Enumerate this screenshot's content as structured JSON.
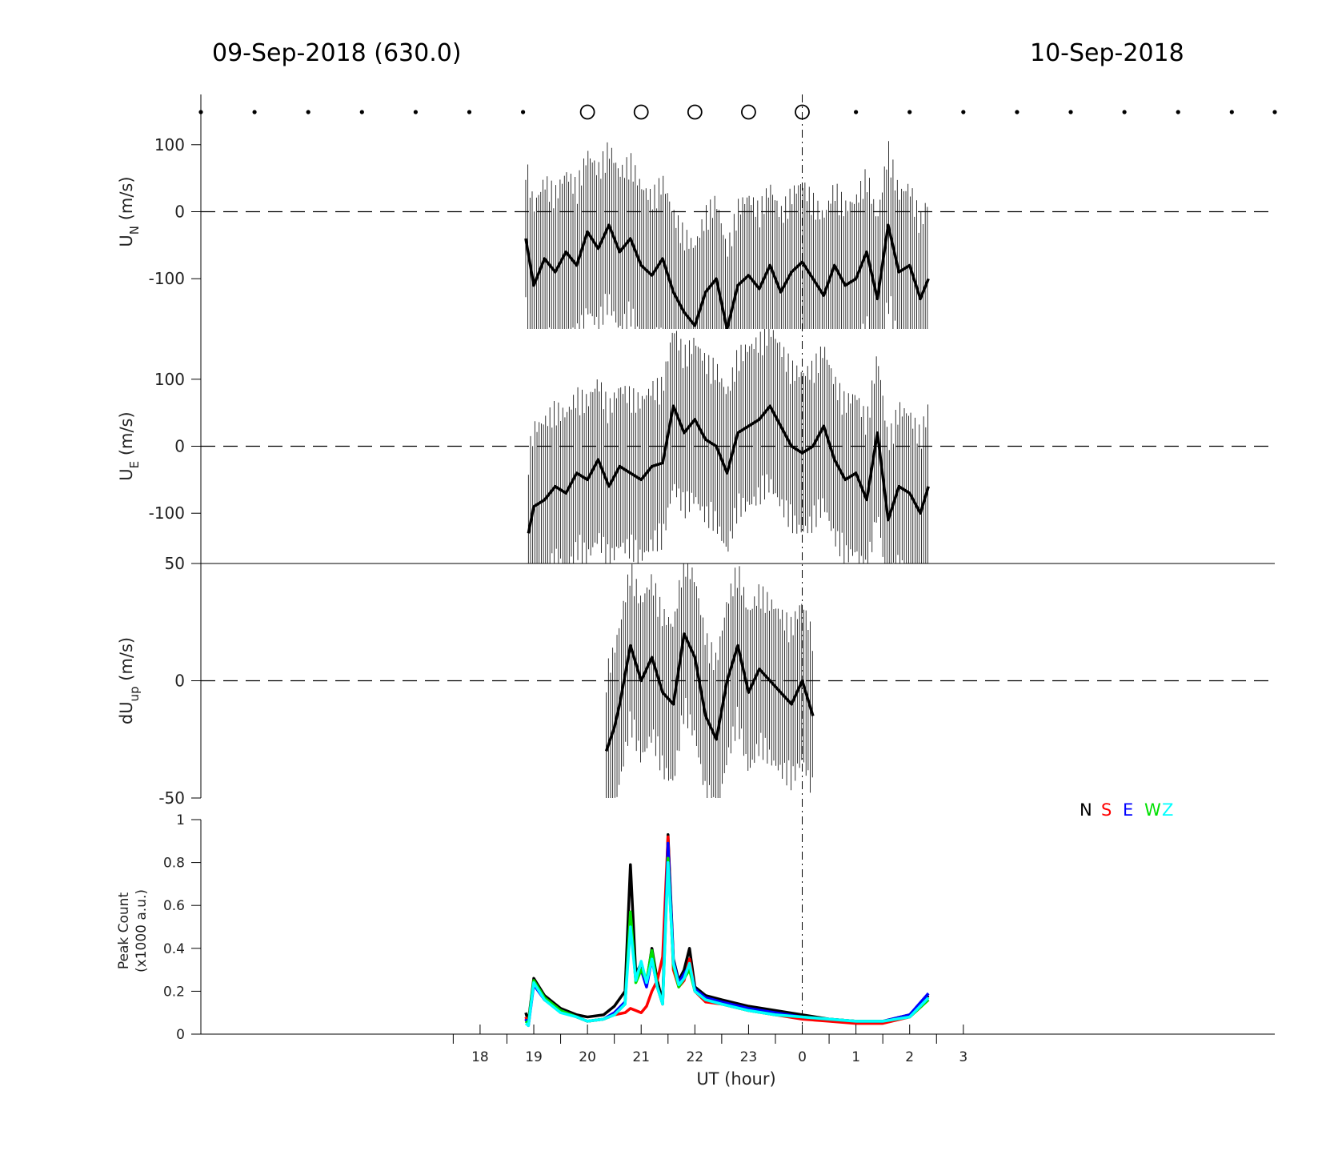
{
  "title_left": "09-Sep-2018 (630.0)",
  "title_right": "10-Sep-2018",
  "x_axis": {
    "label": "UT (hour)",
    "tick_labels": [
      "18",
      "19",
      "20",
      "21",
      "22",
      "23",
      "0",
      "1",
      "2",
      "3"
    ],
    "tick_hours": [
      18,
      19,
      20,
      21,
      22,
      23,
      24,
      25,
      26,
      27
    ],
    "range_hours": [
      12.8,
      32.8
    ],
    "midnight_marker_hour": 24
  },
  "colors": {
    "N": "#000000",
    "S": "#ff0000",
    "E": "#0000ff",
    "W": "#00e000",
    "Z": "#00ffff",
    "line": "#000000"
  },
  "chart_data": [
    {
      "type": "line",
      "name": "UN",
      "ylabel_main": "U",
      "ylabel_sub": "N",
      "ylabel_unit": " (m/s)",
      "ylim": [
        -175,
        175
      ],
      "ytick_labels": [
        "100",
        "0",
        "-100"
      ],
      "ytick_values": [
        100,
        0,
        -100
      ],
      "x": [
        18.85,
        19.0,
        19.2,
        19.4,
        19.6,
        19.8,
        20.0,
        20.2,
        20.4,
        20.6,
        20.8,
        21.0,
        21.2,
        21.4,
        21.6,
        21.8,
        22.0,
        22.2,
        22.4,
        22.6,
        22.8,
        23.0,
        23.2,
        23.4,
        23.6,
        23.8,
        24.0,
        24.2,
        24.4,
        24.6,
        24.8,
        25.0,
        25.2,
        25.4,
        25.6,
        25.8,
        26.0,
        26.2,
        26.35
      ],
      "y": [
        -40,
        -110,
        -70,
        -90,
        -60,
        -80,
        -30,
        -55,
        -20,
        -60,
        -40,
        -80,
        -95,
        -70,
        -120,
        -150,
        -170,
        -120,
        -100,
        -175,
        -110,
        -95,
        -115,
        -80,
        -120,
        -90,
        -75,
        -100,
        -125,
        -80,
        -110,
        -100,
        -60,
        -130,
        -20,
        -90,
        -80,
        -130,
        -100
      ]
    },
    {
      "type": "line",
      "name": "UE",
      "ylabel_main": "U",
      "ylabel_sub": "E",
      "ylabel_unit": " (m/s)",
      "ylim": [
        -175,
        175
      ],
      "ytick_labels": [
        "100",
        "0",
        "-100"
      ],
      "ytick_values": [
        100,
        0,
        -100
      ],
      "x": [
        18.9,
        19.0,
        19.2,
        19.4,
        19.6,
        19.8,
        20.0,
        20.2,
        20.4,
        20.6,
        20.8,
        21.0,
        21.2,
        21.4,
        21.6,
        21.8,
        22.0,
        22.2,
        22.4,
        22.6,
        22.8,
        23.0,
        23.2,
        23.4,
        23.6,
        23.8,
        24.0,
        24.2,
        24.4,
        24.6,
        24.8,
        25.0,
        25.2,
        25.4,
        25.6,
        25.8,
        26.0,
        26.2,
        26.35
      ],
      "y": [
        -130,
        -90,
        -80,
        -60,
        -70,
        -40,
        -50,
        -20,
        -60,
        -30,
        -40,
        -50,
        -30,
        -25,
        60,
        20,
        40,
        10,
        0,
        -40,
        20,
        30,
        40,
        60,
        30,
        0,
        -10,
        0,
        30,
        -20,
        -50,
        -40,
        -80,
        20,
        -110,
        -60,
        -70,
        -100,
        -60
      ]
    },
    {
      "type": "line",
      "name": "dUup",
      "ylabel_main": "dU",
      "ylabel_sub": "up",
      "ylabel_unit": " (m/s)",
      "ylim": [
        -50,
        50
      ],
      "ytick_labels": [
        "50",
        "0",
        "-50"
      ],
      "ytick_values": [
        50,
        0,
        -50
      ],
      "x": [
        20.35,
        20.5,
        20.6,
        20.8,
        21.0,
        21.2,
        21.4,
        21.6,
        21.8,
        22.0,
        22.2,
        22.4,
        22.6,
        22.8,
        23.0,
        23.2,
        23.4,
        23.6,
        23.8,
        24.0,
        24.2
      ],
      "y": [
        -30,
        -20,
        -10,
        15,
        0,
        10,
        -5,
        -10,
        20,
        10,
        -15,
        -25,
        0,
        15,
        -5,
        5,
        0,
        -5,
        -10,
        0,
        -15
      ]
    },
    {
      "type": "line",
      "name": "Peak Count",
      "ylabel_line1": "Peak Count",
      "ylabel_line2": "(x1000 a.u.)",
      "ylim": [
        0,
        1
      ],
      "ytick_labels": [
        "1",
        "0.8",
        "0.6",
        "0.4",
        "0.2",
        "0"
      ],
      "ytick_values": [
        1,
        0.8,
        0.6,
        0.4,
        0.2,
        0
      ],
      "legend": [
        "N",
        "S",
        "E",
        "W",
        "Z"
      ],
      "legend_placement": "top-right",
      "x": [
        18.85,
        18.9,
        19.0,
        19.2,
        19.5,
        19.8,
        20.0,
        20.3,
        20.5,
        20.7,
        20.8,
        20.9,
        21.0,
        21.1,
        21.2,
        21.3,
        21.4,
        21.5,
        21.6,
        21.7,
        21.8,
        21.9,
        22.0,
        22.2,
        22.5,
        23.0,
        23.5,
        24.0,
        24.5,
        25.0,
        25.5,
        26.0,
        26.35
      ],
      "series": [
        {
          "name": "N",
          "values": [
            0.1,
            0.06,
            0.26,
            0.18,
            0.12,
            0.09,
            0.08,
            0.09,
            0.13,
            0.2,
            0.79,
            0.28,
            0.33,
            0.24,
            0.4,
            0.25,
            0.15,
            0.93,
            0.35,
            0.25,
            0.3,
            0.4,
            0.22,
            0.18,
            0.16,
            0.13,
            0.11,
            0.09,
            0.07,
            0.06,
            0.06,
            0.09,
            0.18
          ]
        },
        {
          "name": "S",
          "values": [
            0.08,
            0.05,
            0.24,
            0.16,
            0.11,
            0.08,
            0.06,
            0.07,
            0.09,
            0.1,
            0.12,
            0.11,
            0.1,
            0.13,
            0.2,
            0.25,
            0.36,
            0.92,
            0.3,
            0.22,
            0.25,
            0.35,
            0.2,
            0.15,
            0.14,
            0.11,
            0.09,
            0.07,
            0.06,
            0.05,
            0.05,
            0.08,
            0.16
          ]
        },
        {
          "name": "E",
          "values": [
            0.07,
            0.04,
            0.23,
            0.16,
            0.11,
            0.08,
            0.06,
            0.07,
            0.1,
            0.15,
            0.55,
            0.25,
            0.3,
            0.22,
            0.35,
            0.22,
            0.14,
            0.89,
            0.34,
            0.24,
            0.28,
            0.32,
            0.21,
            0.17,
            0.15,
            0.12,
            0.1,
            0.08,
            0.07,
            0.06,
            0.06,
            0.09,
            0.19
          ]
        },
        {
          "name": "W",
          "values": [
            0.06,
            0.05,
            0.25,
            0.17,
            0.11,
            0.08,
            0.06,
            0.07,
            0.09,
            0.14,
            0.57,
            0.24,
            0.3,
            0.25,
            0.39,
            0.22,
            0.14,
            0.82,
            0.32,
            0.22,
            0.26,
            0.3,
            0.2,
            0.16,
            0.14,
            0.11,
            0.09,
            0.08,
            0.07,
            0.06,
            0.06,
            0.08,
            0.16
          ]
        },
        {
          "name": "Z",
          "values": [
            0.05,
            0.04,
            0.24,
            0.16,
            0.1,
            0.08,
            0.06,
            0.07,
            0.09,
            0.14,
            0.5,
            0.25,
            0.34,
            0.24,
            0.35,
            0.22,
            0.14,
            0.8,
            0.33,
            0.23,
            0.26,
            0.33,
            0.2,
            0.16,
            0.14,
            0.11,
            0.09,
            0.08,
            0.07,
            0.06,
            0.06,
            0.08,
            0.17
          ]
        }
      ]
    }
  ],
  "observation_markers": {
    "dot_hours": [
      12.8,
      13.8,
      14.8,
      15.8,
      16.8,
      17.8,
      18.8,
      25.0,
      26.0,
      27.0,
      28.0,
      29.0,
      30.0,
      31.0,
      32.0,
      32.8
    ],
    "circle_hours": [
      20.0,
      21.0,
      22.0,
      23.0,
      24.0
    ]
  }
}
